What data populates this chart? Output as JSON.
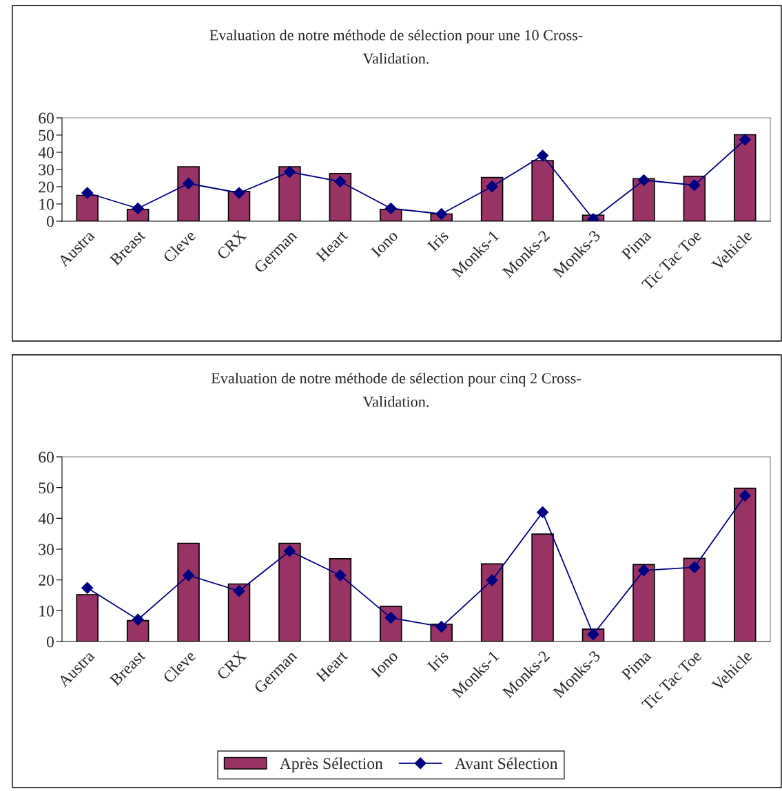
{
  "chart_data": [
    {
      "type": "bar",
      "title": "Evaluation de notre méthode de sélection pour une 10 Cross-\nValidation.",
      "categories": [
        "Austra",
        "Breast",
        "Cleve",
        "CRX",
        "German",
        "Heart",
        "Iono",
        "Iris",
        "Monks-1",
        "Monks-2",
        "Monks-3",
        "Pima",
        "Tic Tac Toe",
        "Vehicle"
      ],
      "ylim": [
        0,
        60
      ],
      "yticks": [
        0,
        10,
        20,
        30,
        40,
        50,
        60
      ],
      "grid": false,
      "legend": false,
      "series": [
        {
          "color": "#993366",
          "values": [
            15,
            6.9,
            31.6,
            17.3,
            31.6,
            27.7,
            6.9,
            4.2,
            25.4,
            35.2,
            3.5,
            24.7,
            26.1,
            50.2
          ]
        },
        {
          "type": "line",
          "color": "#000080",
          "marker": "diamond",
          "values": [
            16.4,
            7.4,
            21.9,
            16.4,
            28.6,
            23,
            7.4,
            4.2,
            20.1,
            38.1,
            1.2,
            23.8,
            20.9,
            47.3
          ]
        }
      ]
    },
    {
      "type": "bar",
      "title": "Evaluation de notre méthode de sélection pour cinq 2 Cross-\nValidation.",
      "categories": [
        "Austra",
        "Breast",
        "Cleve",
        "CRX",
        "German",
        "Heart",
        "Iono",
        "Iris",
        "Monks-1",
        "Monks-2",
        "Monks-3",
        "Pima",
        "Tic Tac Toe",
        "Vehicle"
      ],
      "ylim": [
        0,
        60
      ],
      "yticks": [
        0,
        10,
        20,
        30,
        40,
        50,
        60
      ],
      "grid": false,
      "legend": "bottom",
      "series": [
        {
          "name": "Après Sélection",
          "color": "#993366",
          "values": [
            15.2,
            6.8,
            31.9,
            18.7,
            31.9,
            26.9,
            11.4,
            5.6,
            25.2,
            34.9,
            4.0,
            25.0,
            27.0,
            49.8
          ]
        },
        {
          "type": "line",
          "name": "Avant Sélection",
          "color": "#000080",
          "marker": "diamond",
          "values": [
            17.4,
            7.1,
            21.5,
            16.4,
            29.4,
            21.5,
            7.7,
            4.8,
            19.9,
            42.0,
            2.3,
            23.1,
            24.1,
            47.4
          ]
        }
      ]
    }
  ]
}
